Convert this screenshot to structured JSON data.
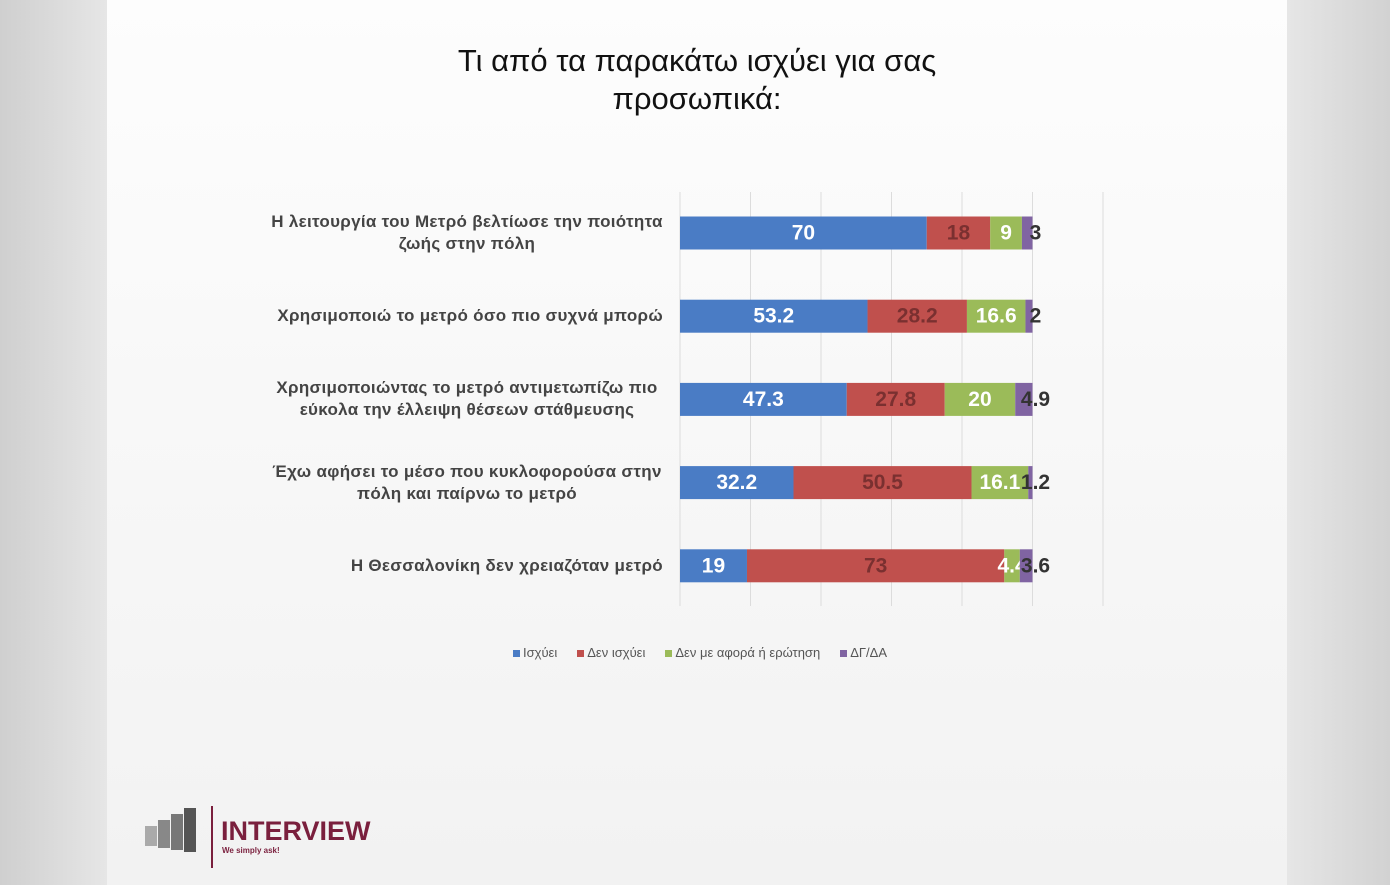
{
  "chart_data": {
    "type": "stacked-bar",
    "title": "Τι από τα παρακάτω ισχύει για σας προσωπικά:",
    "categories": [
      "Η λειτουργία του Μετρό βελτίωσε την ποιότητα ζωής στην πόλη",
      "Χρησιμοποιώ το μετρό όσο πιο συχνά μπορώ",
      "Χρησιμοποιώντας το μετρό αντιμετωπίζω πιο εύκολα την έλλειψη θέσεων στάθμευσης",
      "Έχω αφήσει το μέσο που κυκλοφορούσα στην πόλη και παίρνω το μετρό",
      "Η Θεσσαλονίκη δεν χρειαζόταν μετρό"
    ],
    "series": [
      {
        "name": "Ισχύει",
        "color": "#4a7cc5",
        "values": [
          70,
          53.2,
          47.3,
          32.2,
          19
        ]
      },
      {
        "name": "Δεν ισχύει",
        "color": "#c0504d",
        "values": [
          18,
          28.2,
          27.8,
          50.5,
          73
        ]
      },
      {
        "name": "Δεν με αφορά ή ερώτηση",
        "color": "#9bbb59",
        "values": [
          9,
          16.6,
          20,
          16.1,
          4.4
        ]
      },
      {
        "name": "ΔΓ/ΔΑ",
        "color": "#8064a2",
        "values": [
          3,
          2,
          4.9,
          1.2,
          3.6
        ]
      }
    ],
    "xlim": [
      0,
      120
    ],
    "xticks": [
      0,
      20,
      40,
      60,
      80,
      100,
      120
    ],
    "grid": true,
    "legend": "bottom"
  },
  "logo": {
    "name": "INTERVIEW",
    "tagline": "We simply ask!"
  }
}
